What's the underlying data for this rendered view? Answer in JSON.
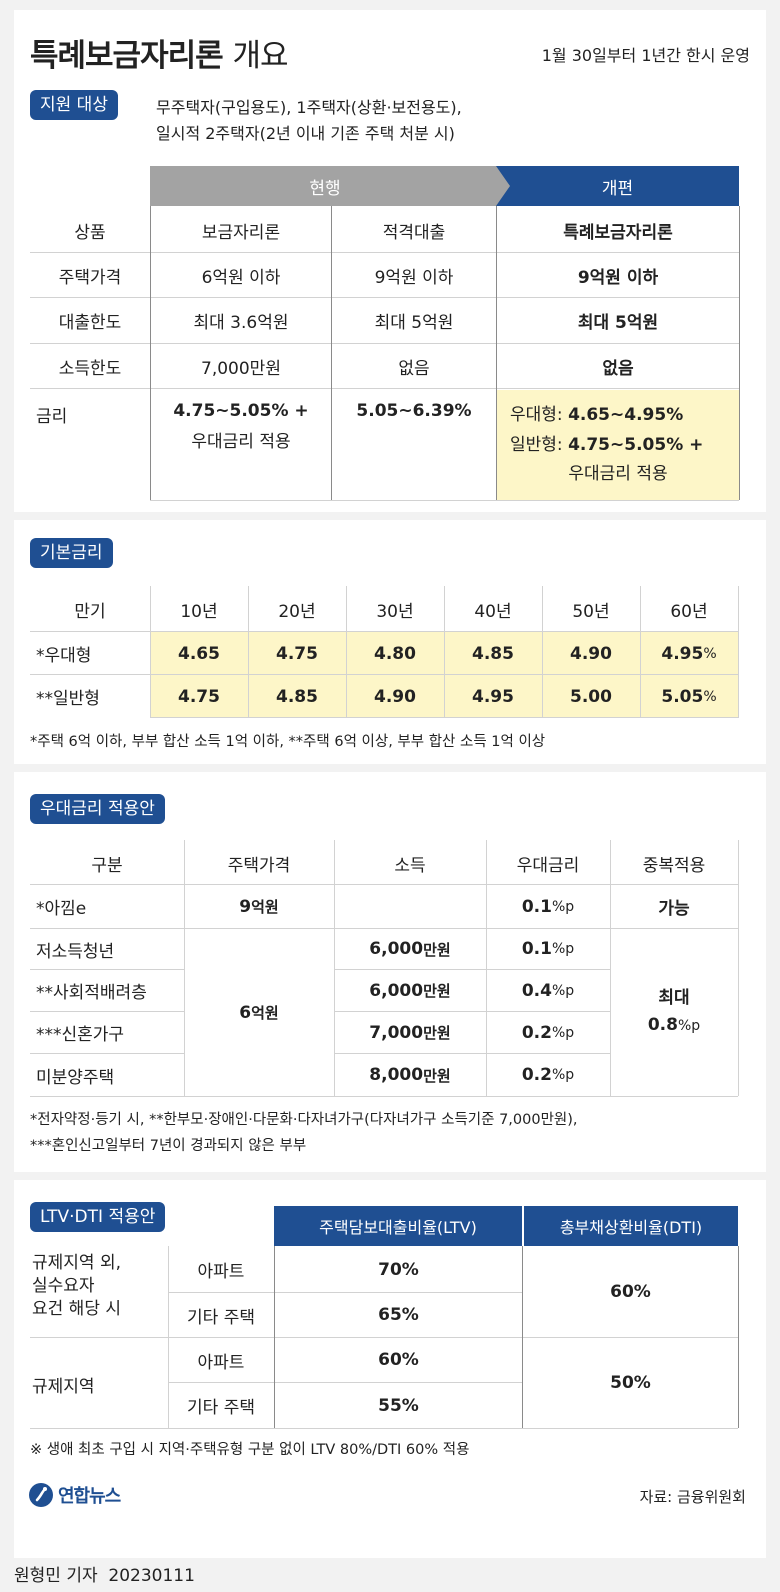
{
  "header": {
    "title": "특례보금자리론",
    "title_suffix": "개요",
    "note": "1월 30일부터 1년간 한시 운영"
  },
  "target": {
    "label": "지원 대상",
    "line1": "무주택자(구입용도), 1주택자(상환·보전용도),",
    "line2": "일시적 2주택자(2년 이내 기존 주택 처분 시)"
  },
  "overview": {
    "header_current": "현행",
    "header_new": "개편",
    "row_labels": [
      "상품",
      "주택가격",
      "대출한도",
      "소득한도",
      "금리"
    ],
    "col_bogeum": [
      "보금자리론",
      "6억원 이하",
      "최대 3.6억원",
      "7,000만원"
    ],
    "col_jeokgyeok": [
      "적격대출",
      "9억원 이하",
      "최대 5억원",
      "없음"
    ],
    "col_new": [
      "특례보금자리론",
      "9억원 이하",
      "최대 5억원",
      "없음"
    ],
    "rate_bogeum_1": "4.75~5.05% +",
    "rate_bogeum_2": "우대금리 적용",
    "rate_jeokgyeok": "5.05~6.39%",
    "rate_new_label1": "우대형:",
    "rate_new_value1": "4.65~4.95%",
    "rate_new_label2": "일반형:",
    "rate_new_value2": "4.75~5.05% +",
    "rate_new_3": "우대금리 적용"
  },
  "base_rate": {
    "label": "기본금리",
    "term_label": "만기",
    "terms": [
      "10년",
      "20년",
      "30년",
      "40년",
      "50년",
      "60년"
    ],
    "row1_label": "*우대형",
    "row1": [
      "4.65",
      "4.75",
      "4.80",
      "4.85",
      "4.90",
      "4.95"
    ],
    "row2_label": "**일반형",
    "row2": [
      "4.75",
      "4.85",
      "4.90",
      "4.95",
      "5.00",
      "5.05"
    ],
    "pct": "%",
    "footnote": "*주택 6억 이하, 부부 합산 소득 1억 이하, **주택 6억 이상, 부부 합산 소득 1억 이상"
  },
  "preferential": {
    "label": "우대금리 적용안",
    "headers": [
      "구분",
      "주택가격",
      "소득",
      "우대금리",
      "중복적용"
    ],
    "categories": [
      "*아낌e",
      "저소득청년",
      "**사회적배려층",
      "***신혼가구",
      "미분양주택"
    ],
    "price_9_num": "9",
    "price_6_num": "6",
    "price_unit": "억원",
    "incomes_num": [
      "6,000",
      "6,000",
      "7,000",
      "8,000"
    ],
    "income_unit": "만원",
    "rates_num": [
      "0.1",
      "0.1",
      "0.4",
      "0.2",
      "0.2"
    ],
    "rate_unit": "%p",
    "dup_1": "가능",
    "dup_2a": "최대",
    "dup_2b_num": "0.8",
    "footnote1": "*전자약정·등기 시, **한부모·장애인·다문화·다자녀가구(다자녀가구 소득기준 7,000만원),",
    "footnote2": "***혼인신고일부터 7년이 경과되지 않은 부부"
  },
  "ltv": {
    "label": "LTV·DTI 적용안",
    "header_ltv": "주택담보대출비율(LTV)",
    "header_dti": "총부채상환비율(DTI)",
    "group1_1": "규제지역 외,",
    "group1_2": "실수요자",
    "group1_3": "요건 해당 시",
    "group2": "규제지역",
    "types": [
      "아파트",
      "기타 주택",
      "아파트",
      "기타 주택"
    ],
    "ltv_values": [
      "70%",
      "65%",
      "60%",
      "55%"
    ],
    "dti_values": [
      "60%",
      "50%"
    ],
    "footnote": "※ 생애 최초 구입 시 지역·주택유형 구분 없이 LTV 80%/DTI 60% 적용"
  },
  "footer": {
    "logo_text": "연합뉴스",
    "source": "자료: 금융위원회",
    "credit": "원형민 기자  20230111"
  },
  "colors": {
    "brand_blue": "#1f4f92",
    "header_gray": "#a3a3a3",
    "highlight_yellow": "#fdf6c8"
  }
}
